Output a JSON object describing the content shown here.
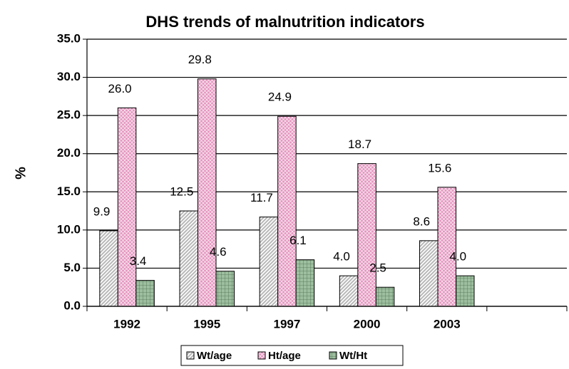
{
  "chart_data": {
    "type": "bar",
    "title": "DHS trends of malnutrition indicators",
    "y_label": "%",
    "categories": [
      "1992",
      "1995",
      "1997",
      "2000",
      "2003",
      null
    ],
    "series": [
      {
        "name": "Wt/age",
        "color": "#b8b8b8",
        "values": [
          9.9,
          12.5,
          11.7,
          4.0,
          8.6,
          null
        ],
        "value_labels": [
          "9.9",
          "12.5",
          "11.7",
          "4.0",
          "8.6",
          null
        ]
      },
      {
        "name": "Ht/age",
        "color": "#e493bd",
        "values": [
          26.0,
          29.8,
          24.9,
          18.7,
          15.6,
          null
        ],
        "value_labels": [
          "26.0",
          "29.8",
          "24.9",
          "18.7",
          "15.6",
          null
        ]
      },
      {
        "name": "Wt/Ht",
        "color": "#9dbf9f",
        "values": [
          3.4,
          4.6,
          6.1,
          2.5,
          4.0,
          null
        ],
        "value_labels": [
          "3.4",
          "4.6",
          "6.1",
          "2.5",
          "4.0",
          null
        ]
      }
    ],
    "ylim": [
      0,
      35
    ],
    "yticks": [
      {
        "value": 0,
        "label": "0.0"
      },
      {
        "value": 5,
        "label": "5.0"
      },
      {
        "value": 10,
        "label": "10.0"
      },
      {
        "value": 15,
        "label": "15.0"
      },
      {
        "value": 20,
        "label": "20.0"
      },
      {
        "value": 25,
        "label": "25.0"
      },
      {
        "value": 30,
        "label": "30.0"
      },
      {
        "value": 35,
        "label": "35.0"
      }
    ],
    "grid": true,
    "legend": "bottom"
  }
}
